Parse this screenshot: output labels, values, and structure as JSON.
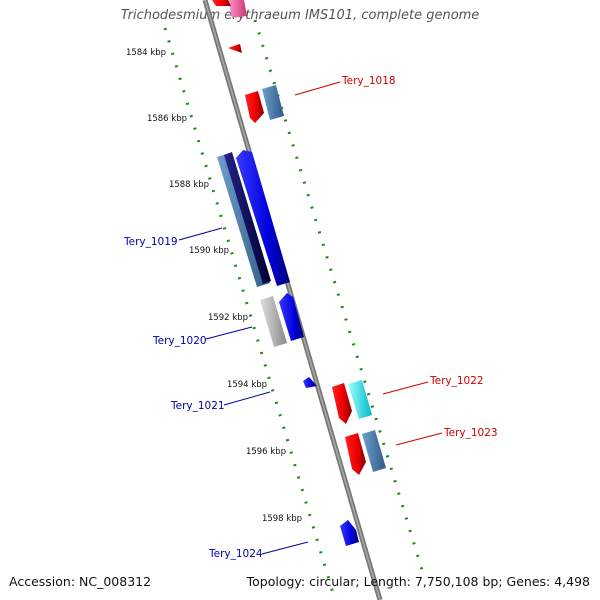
{
  "title": "Trichodesmium erythraeum IMS101, complete genome",
  "accession": "Accession: NC_008312",
  "summary": "Topology: circular; Length: 7,750,108 bp; Genes: 4,498",
  "ticks": [
    "1584 kbp",
    "1586 kbp",
    "1588 kbp",
    "1590 kbp",
    "1592 kbp",
    "1594 kbp",
    "1596 kbp",
    "1598 kbp"
  ],
  "gene_labels": [
    {
      "text": "Tery_1018",
      "strand": "forward"
    },
    {
      "text": "Tery_1019",
      "strand": "reverse"
    },
    {
      "text": "Tery_1020",
      "strand": "reverse"
    },
    {
      "text": "Tery_1021",
      "strand": "reverse"
    },
    {
      "text": "Tery_1022",
      "strand": "forward"
    },
    {
      "text": "Tery_1023",
      "strand": "forward"
    },
    {
      "text": "Tery_1024",
      "strand": "reverse"
    }
  ],
  "colors": {
    "forward_label": "#cc0000",
    "reverse_label": "#0000aa",
    "backbone": "#888888",
    "tick": "#228822"
  }
}
